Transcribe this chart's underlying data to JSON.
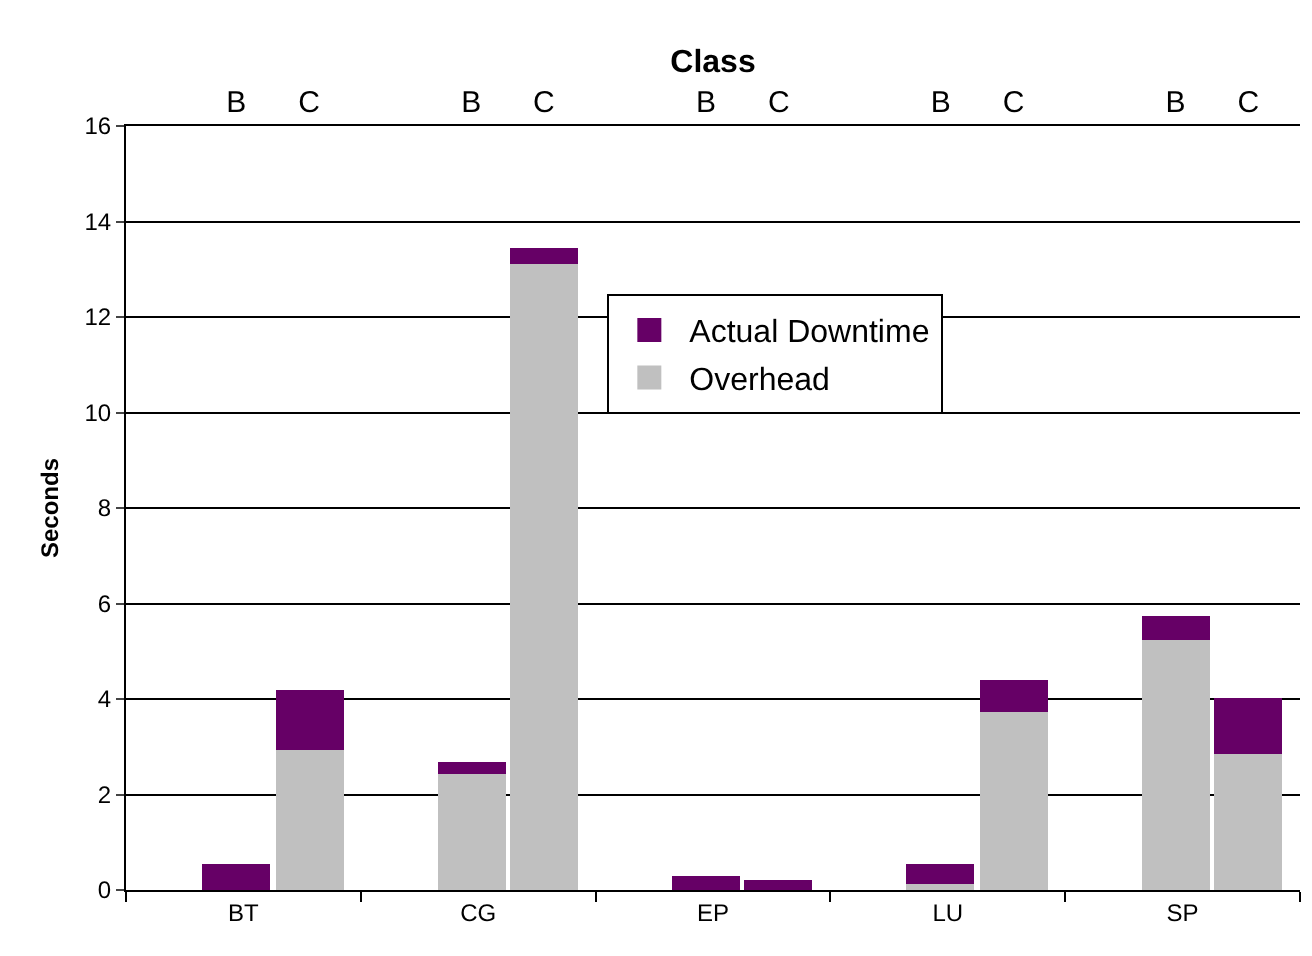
{
  "chart_data": {
    "type": "bar",
    "stacked": true,
    "xlabel": "Class",
    "ylabel": "Seconds",
    "categories": [
      "B",
      "C",
      "B",
      "C",
      "B",
      "C",
      "B",
      "C",
      "B",
      "C"
    ],
    "annotations": [
      "BT",
      "CG",
      "EP",
      "LU",
      "SP"
    ],
    "series": [
      {
        "name": "Overhead",
        "color": "#c0c0c0",
        "values": [
          0,
          2.93,
          2.43,
          13.1,
          0,
          0,
          0.13,
          3.72,
          5.23,
          2.85
        ]
      },
      {
        "name": "Actual Downtime",
        "color": "#660066",
        "values": [
          0.55,
          1.25,
          0.25,
          0.33,
          0.3,
          0.21,
          0.42,
          0.67,
          0.5,
          1.17
        ]
      }
    ],
    "ylim": [
      0,
      16
    ],
    "yticks": [
      0,
      2,
      4,
      6,
      8,
      10,
      12,
      14,
      16
    ],
    "grid": "y",
    "legend": "top right"
  }
}
